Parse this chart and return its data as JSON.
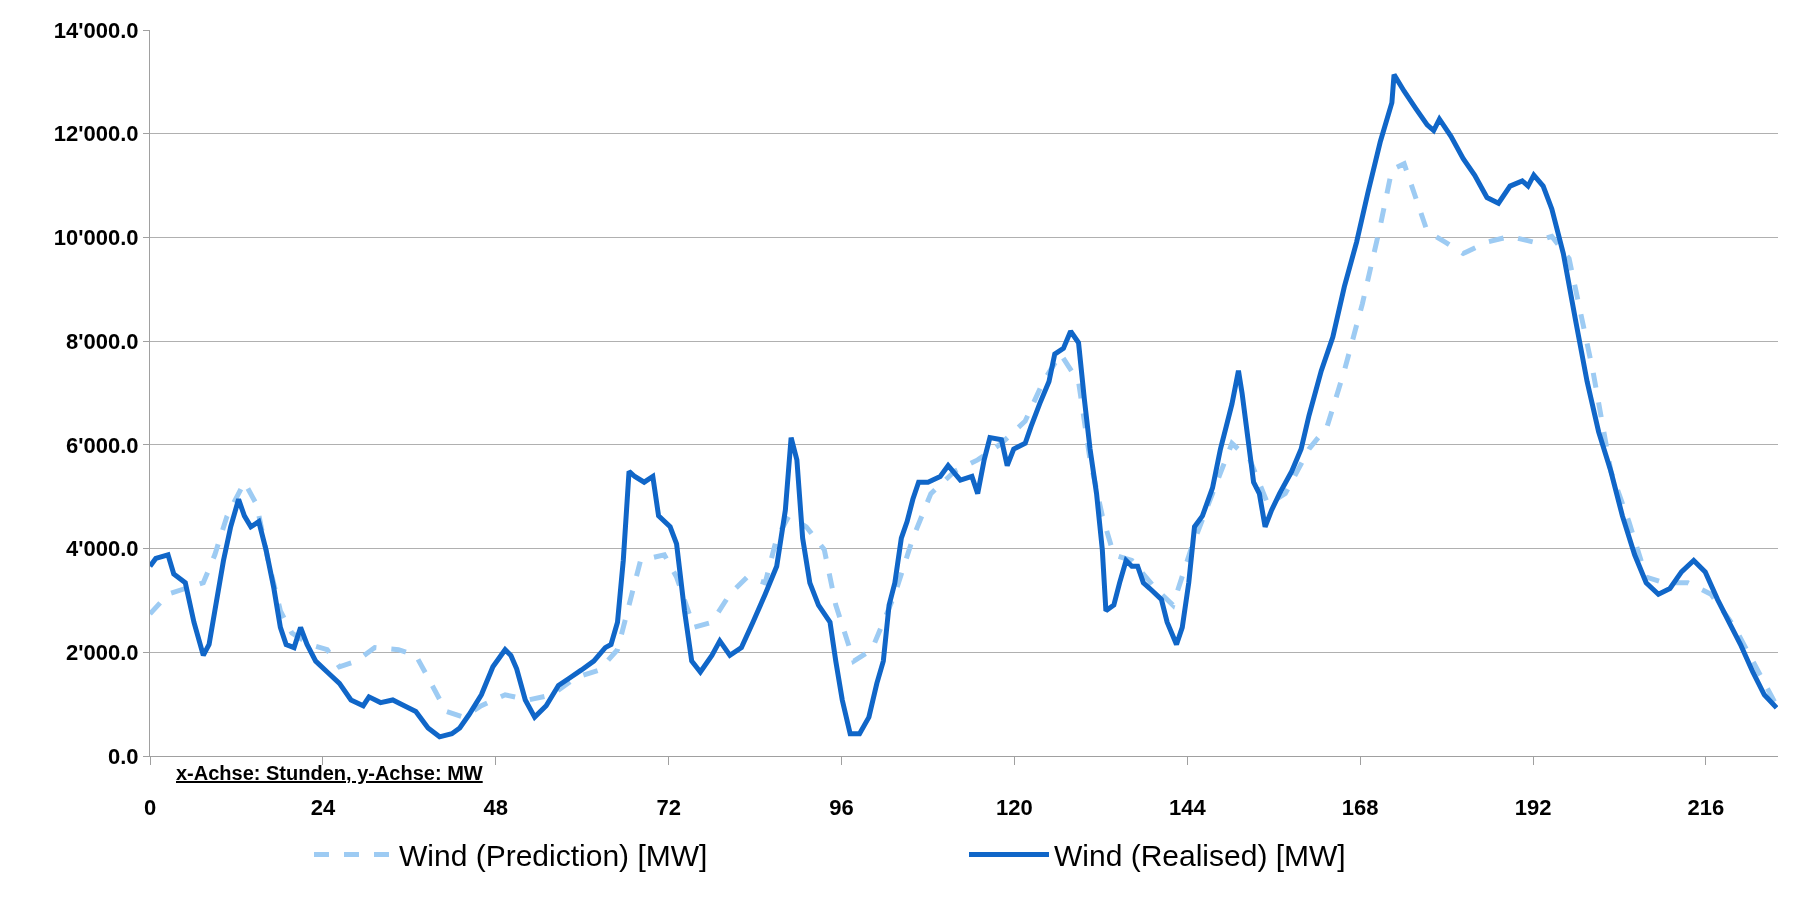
{
  "chart_data": {
    "type": "line",
    "xlim": [
      0,
      226
    ],
    "xticks": [
      0,
      24,
      48,
      72,
      96,
      120,
      144,
      168,
      192,
      216
    ],
    "ylim": [
      0,
      14000
    ],
    "yticks": [
      {
        "value": 0,
        "label": "0.0"
      },
      {
        "value": 2000,
        "label": "2'000.0"
      },
      {
        "value": 4000,
        "label": "4'000.0"
      },
      {
        "value": 6000,
        "label": "6'000.0"
      },
      {
        "value": 8000,
        "label": "8'000.0"
      },
      {
        "value": 10000,
        "label": "10'000.0"
      },
      {
        "value": 12000,
        "label": "12'000.0"
      },
      {
        "value": 14000,
        "label": "14'000.0"
      }
    ],
    "grid": "y",
    "legend": "bottom",
    "marker": "none",
    "annotations": [
      "x-Achse: Stunden, y-Achse: MW"
    ],
    "series": [
      {
        "name": "Wind (Prediction) [MW]",
        "color": "#9dcbf3",
        "line_style": "dashed",
        "x": [
          0,
          2.5,
          4.9,
          7.4,
          9.0,
          10.7,
          13.1,
          14.8,
          16.4,
          18.1,
          19.7,
          22.2,
          24.6,
          26.3,
          28.7,
          31.2,
          34.5,
          36.9,
          38.6,
          41.1,
          43.5,
          46.0,
          49.3,
          52.5,
          55.8,
          59.1,
          62.4,
          64.9,
          66.5,
          68.1,
          71.4,
          73.1,
          75.5,
          78.0,
          80.5,
          82.9,
          85.4,
          87.0,
          88.7,
          91.1,
          93.6,
          95.2,
          97.7,
          100.2,
          103.4,
          105.9,
          108.4,
          111.7,
          114.9,
          118.2,
          121.5,
          124.0,
          126.4,
          128.9,
          130.5,
          132.2,
          133.8,
          136.3,
          139.6,
          142.0,
          144.5,
          147.8,
          150.2,
          152.7,
          155.2,
          157.6,
          160.9,
          163.4,
          165.8,
          168.3,
          170.8,
          172.4,
          174.1,
          175.7,
          177.3,
          179.8,
          182.3,
          185.6,
          188.8,
          192.1,
          194.6,
          197.0,
          200.3,
          202.8,
          205.3,
          207.7,
          210.2,
          213.5,
          216.7,
          220.0,
          223.3,
          225.8
        ],
        "values": [
          2740,
          3120,
          3230,
          3340,
          3880,
          4630,
          5280,
          4850,
          3770,
          2800,
          2370,
          2150,
          2050,
          1720,
          1830,
          2090,
          2050,
          1940,
          1510,
          860,
          750,
          970,
          1180,
          1080,
          1180,
          1510,
          1660,
          2050,
          2910,
          3770,
          3880,
          3450,
          2480,
          2580,
          3120,
          3450,
          3340,
          4200,
          4630,
          4420,
          3980,
          2910,
          1830,
          2050,
          3120,
          4200,
          5060,
          5490,
          5710,
          6030,
          6460,
          7220,
          7750,
          7220,
          5710,
          4630,
          3880,
          3770,
          3230,
          2910,
          3980,
          5170,
          6030,
          5710,
          4850,
          5060,
          5920,
          6350,
          7430,
          8720,
          10230,
          11310,
          11420,
          10770,
          10120,
          9910,
          9690,
          9910,
          10020,
          9910,
          10020,
          9590,
          7430,
          5490,
          4520,
          3450,
          3340,
          3340,
          3120,
          2480,
          1620,
          970
        ]
      },
      {
        "name": "Wind (Realised) [MW]",
        "color": "#1066c8",
        "line_style": "solid",
        "x": [
          0,
          0.8,
          2.5,
          3.3,
          4.9,
          6.1,
          7.4,
          8.2,
          9.0,
          10.2,
          11.2,
          12.3,
          13.1,
          14.0,
          15.1,
          16.1,
          17.2,
          18.1,
          18.9,
          20.0,
          20.9,
          21.8,
          23.0,
          24.6,
          26.3,
          27.9,
          29.6,
          30.4,
          32.0,
          33.7,
          35.3,
          36.9,
          38.6,
          40.2,
          41.9,
          43.0,
          44.3,
          46.0,
          47.6,
          49.3,
          50.1,
          50.9,
          52.1,
          53.4,
          55.0,
          56.7,
          58.3,
          59.9,
          61.6,
          63.2,
          64.0,
          64.9,
          65.7,
          66.5,
          67.3,
          68.6,
          69.8,
          70.6,
          72.2,
          73.1,
          74.2,
          75.2,
          76.4,
          78.0,
          79.1,
          80.5,
          82.1,
          83.7,
          85.4,
          87.0,
          88.2,
          89.0,
          89.8,
          90.6,
          91.6,
          92.8,
          94.4,
          95.2,
          96.1,
          97.2,
          98.5,
          99.8,
          100.9,
          101.8,
          102.6,
          103.4,
          104.3,
          105.1,
          105.9,
          106.7,
          108.0,
          109.7,
          110.8,
          112.5,
          114.1,
          114.9,
          115.8,
          116.6,
          118.2,
          119.0,
          119.9,
          121.5,
          122.3,
          123.5,
          124.8,
          125.6,
          126.8,
          127.8,
          128.9,
          129.7,
          130.5,
          131.4,
          132.2,
          132.7,
          133.8,
          134.6,
          135.5,
          136.3,
          137.1,
          137.9,
          138.8,
          140.4,
          141.2,
          142.5,
          143.3,
          144.2,
          145.0,
          146.1,
          147.5,
          148.6,
          149.4,
          150.2,
          151.1,
          151.6,
          152.4,
          153.2,
          154.0,
          154.8,
          155.7,
          156.8,
          158.5,
          159.8,
          160.9,
          162.6,
          164.2,
          165.8,
          167.5,
          169.1,
          170.8,
          172.4,
          172.7,
          174.1,
          175.7,
          177.3,
          178.2,
          179.0,
          180.6,
          182.3,
          183.9,
          185.6,
          187.2,
          188.8,
          190.5,
          191.3,
          192.1,
          193.4,
          194.6,
          196.2,
          197.9,
          199.5,
          201.1,
          202.8,
          204.4,
          206.1,
          207.7,
          209.4,
          211.0,
          212.6,
          214.3,
          215.9,
          217.6,
          219.2,
          220.8,
          222.5,
          224.1,
          225.8
        ],
        "values": [
          3660,
          3810,
          3880,
          3510,
          3340,
          2580,
          1940,
          2150,
          2800,
          3770,
          4420,
          4950,
          4630,
          4420,
          4520,
          3980,
          3230,
          2480,
          2150,
          2090,
          2480,
          2150,
          1830,
          1620,
          1400,
          1080,
          970,
          1140,
          1030,
          1080,
          970,
          860,
          540,
          370,
          430,
          540,
          800,
          1180,
          1720,
          2050,
          1940,
          1680,
          1080,
          750,
          970,
          1360,
          1510,
          1660,
          1830,
          2090,
          2150,
          2580,
          3770,
          5490,
          5390,
          5280,
          5390,
          4630,
          4420,
          4090,
          2800,
          1830,
          1620,
          1940,
          2220,
          1940,
          2090,
          2580,
          3120,
          3660,
          4740,
          6140,
          5710,
          4200,
          3340,
          2910,
          2580,
          1830,
          1080,
          430,
          430,
          750,
          1400,
          1830,
          2910,
          3340,
          4200,
          4520,
          4950,
          5280,
          5280,
          5390,
          5600,
          5320,
          5390,
          5060,
          5710,
          6140,
          6100,
          5600,
          5920,
          6030,
          6350,
          6790,
          7220,
          7750,
          7860,
          8190,
          7970,
          6890,
          5920,
          5060,
          3980,
          2800,
          2910,
          3340,
          3770,
          3660,
          3660,
          3340,
          3230,
          3020,
          2580,
          2150,
          2480,
          3340,
          4420,
          4630,
          5170,
          5920,
          6350,
          6790,
          7430,
          7000,
          6140,
          5280,
          5060,
          4420,
          4740,
          5060,
          5490,
          5920,
          6570,
          7430,
          8080,
          9050,
          9910,
          10880,
          11850,
          12600,
          13140,
          12820,
          12490,
          12170,
          12060,
          12280,
          11950,
          11520,
          11200,
          10770,
          10660,
          10990,
          11090,
          10990,
          11200,
          10990,
          10550,
          9690,
          8400,
          7220,
          6250,
          5490,
          4630,
          3880,
          3340,
          3120,
          3230,
          3550,
          3770,
          3550,
          3020,
          2580,
          2150,
          1620,
          1180,
          930
        ]
      }
    ]
  }
}
